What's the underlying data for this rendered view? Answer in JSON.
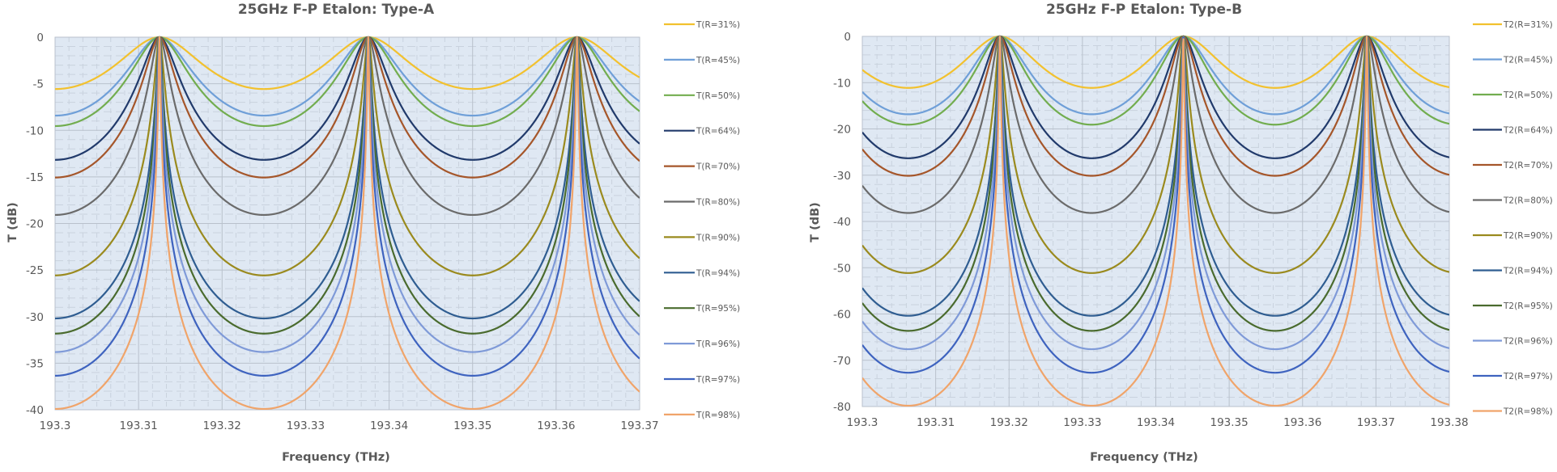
{
  "chart_data": [
    {
      "type": "line",
      "title": "25GHz F-P Etalon: Type-A",
      "xlabel": "Frequency (THz)",
      "ylabel": "T (dB)",
      "xlim": [
        193.3,
        193.37
      ],
      "ylim": [
        -40,
        0
      ],
      "xticks": [
        "193.3",
        "193.31",
        "193.32",
        "193.33",
        "193.34",
        "193.35",
        "193.36",
        "193.37"
      ],
      "yticks": [
        "0",
        "-5",
        "-10",
        "-15",
        "-20",
        "-25",
        "-30",
        "-35",
        "-40"
      ],
      "xtick_values": [
        193.3,
        193.31,
        193.32,
        193.33,
        193.34,
        193.35,
        193.36,
        193.37
      ],
      "ytick_values": [
        0,
        -5,
        -10,
        -15,
        -20,
        -25,
        -30,
        -35,
        -40
      ],
      "grid": true,
      "legend_position": "right",
      "model": "airy",
      "fsr_thz": 0.025,
      "peak_frequencies_thz": [
        193.3125,
        193.3375,
        193.3625
      ],
      "passes": 1,
      "series": [
        {
          "name": "T(R=31%)",
          "R": 0.31,
          "min_db": -5.6,
          "color": "#f2c12e"
        },
        {
          "name": "T(R=45%)",
          "R": 0.45,
          "min_db": -8.4,
          "color": "#6f9fd8"
        },
        {
          "name": "T(R=50%)",
          "R": 0.5,
          "min_db": -9.5,
          "color": "#72ad4f"
        },
        {
          "name": "T(R=64%)",
          "R": 0.64,
          "min_db": -13.2,
          "color": "#213a6b"
        },
        {
          "name": "T(R=70%)",
          "R": 0.7,
          "min_db": -15.1,
          "color": "#a5562a"
        },
        {
          "name": "T(R=80%)",
          "R": 0.8,
          "min_db": -19.1,
          "color": "#6b6b6b"
        },
        {
          "name": "T(R=90%)",
          "R": 0.9,
          "min_db": -25.6,
          "color": "#9a8a1e"
        },
        {
          "name": "T(R=94%)",
          "R": 0.94,
          "min_db": -30.2,
          "color": "#2f5d91"
        },
        {
          "name": "T(R=95%)",
          "R": 0.95,
          "min_db": -31.8,
          "color": "#4a6b2e"
        },
        {
          "name": "T(R=96%)",
          "R": 0.96,
          "min_db": -33.8,
          "color": "#7f9ad8"
        },
        {
          "name": "T(R=97%)",
          "R": 0.97,
          "min_db": -36.3,
          "color": "#3e63bf"
        },
        {
          "name": "T(R=98%)",
          "R": 0.98,
          "min_db": -40.0,
          "color": "#f0a46a"
        }
      ]
    },
    {
      "type": "line",
      "title": "25GHz F-P Etalon: Type-B",
      "xlabel": "Frequency (THz)",
      "ylabel": "T (dB)",
      "xlim": [
        193.3,
        193.38
      ],
      "ylim": [
        -80,
        0
      ],
      "xticks": [
        "193.3",
        "193.31",
        "193.32",
        "193.33",
        "193.34",
        "193.35",
        "193.36",
        "193.37",
        "193.38"
      ],
      "yticks": [
        "0",
        "-10",
        "-20",
        "-30",
        "-40",
        "-50",
        "-60",
        "-70",
        "-80"
      ],
      "xtick_values": [
        193.3,
        193.31,
        193.32,
        193.33,
        193.34,
        193.35,
        193.36,
        193.37,
        193.38
      ],
      "ytick_values": [
        0,
        -10,
        -20,
        -30,
        -40,
        -50,
        -60,
        -70,
        -80
      ],
      "grid": true,
      "legend_position": "right",
      "model": "airy",
      "fsr_thz": 0.025,
      "peak_frequencies_thz": [
        193.31875,
        193.34375,
        193.36875
      ],
      "passes": 2,
      "series": [
        {
          "name": "T2(R=31%)",
          "R": 0.31,
          "min_db": -11.1,
          "color": "#f2c12e"
        },
        {
          "name": "T2(R=45%)",
          "R": 0.45,
          "min_db": -16.9,
          "color": "#6f9fd8"
        },
        {
          "name": "T2(R=50%)",
          "R": 0.5,
          "min_db": -19.1,
          "color": "#72ad4f"
        },
        {
          "name": "T2(R=64%)",
          "R": 0.64,
          "min_db": -26.3,
          "color": "#213a6b"
        },
        {
          "name": "T2(R=70%)",
          "R": 0.7,
          "min_db": -30.1,
          "color": "#a5562a"
        },
        {
          "name": "T2(R=80%)",
          "R": 0.8,
          "min_db": -38.2,
          "color": "#6b6b6b"
        },
        {
          "name": "T2(R=90%)",
          "R": 0.9,
          "min_db": -51.2,
          "color": "#9a8a1e"
        },
        {
          "name": "T2(R=94%)",
          "R": 0.94,
          "min_db": -60.4,
          "color": "#2f5d91"
        },
        {
          "name": "T2(R=95%)",
          "R": 0.95,
          "min_db": -63.6,
          "color": "#4a6b2e"
        },
        {
          "name": "T2(R=96%)",
          "R": 0.96,
          "min_db": -67.5,
          "color": "#7f9ad8"
        },
        {
          "name": "T2(R=97%)",
          "R": 0.97,
          "min_db": -72.5,
          "color": "#3e63bf"
        },
        {
          "name": "T2(R=98%)",
          "R": 0.98,
          "min_db": -79.7,
          "color": "#f0a46a"
        }
      ]
    }
  ],
  "style": {
    "plot_background": "#dfe8f3",
    "major_grid": "#b9c1cc",
    "minor_grid": "#c9d2de",
    "text": "#595959"
  }
}
